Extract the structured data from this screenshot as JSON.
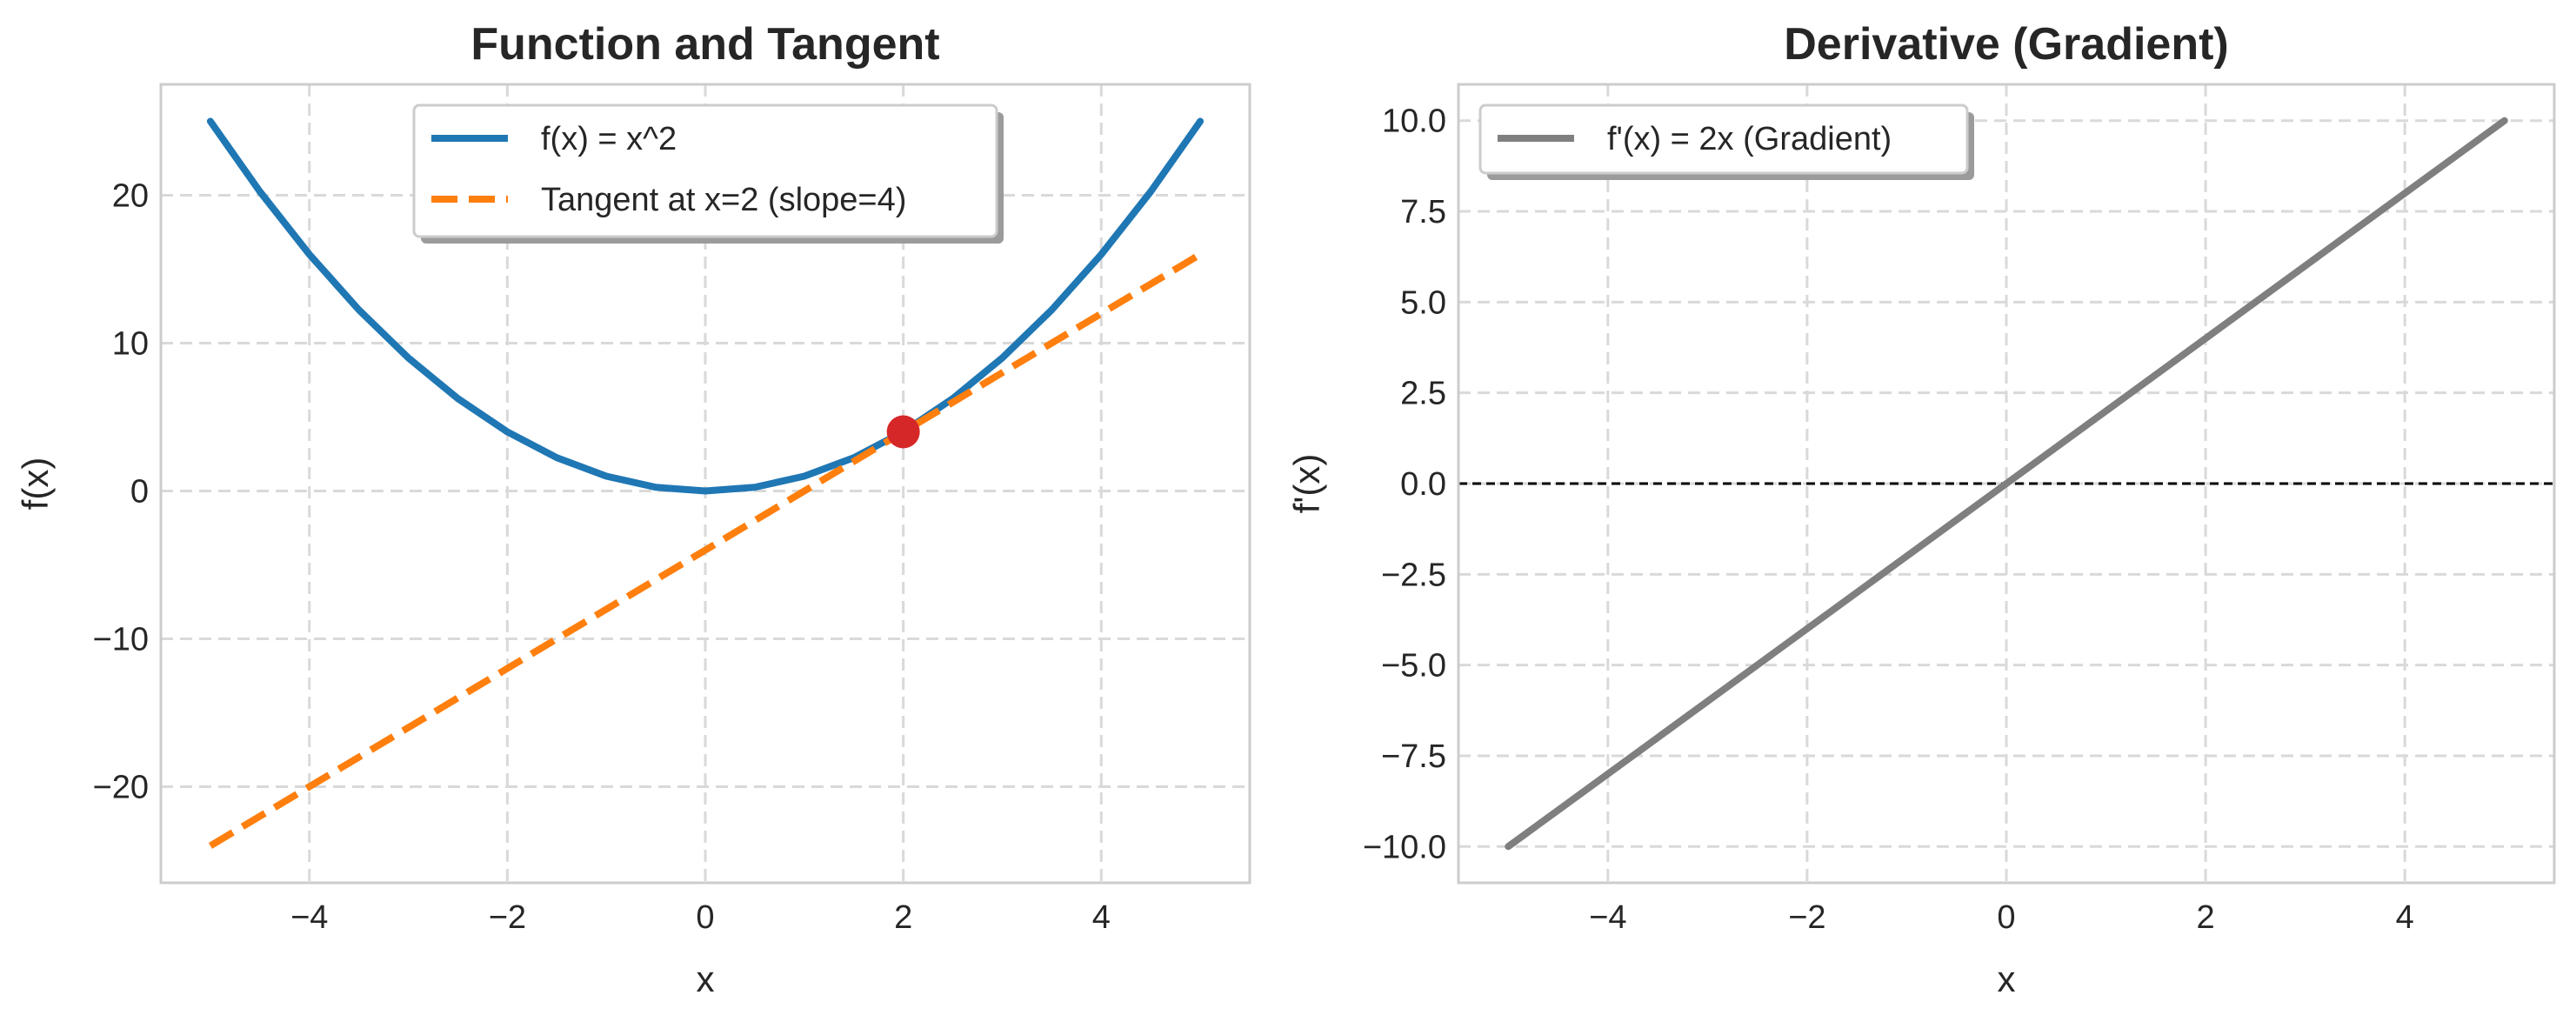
{
  "chart_data": [
    {
      "type": "line",
      "title": "Function and Tangent",
      "xlabel": "x",
      "ylabel": "f(x)",
      "xlim": [
        -5.5,
        5.5
      ],
      "ylim": [
        -26.5,
        27.5
      ],
      "xticks": [
        -4,
        -2,
        0,
        2,
        4
      ],
      "xtick_labels": [
        "−4",
        "−2",
        "0",
        "2",
        "4"
      ],
      "yticks": [
        -20,
        -10,
        0,
        10,
        20
      ],
      "ytick_labels": [
        "−20",
        "−10",
        "0",
        "10",
        "20"
      ],
      "grid": true,
      "legend_position": "top-center",
      "series": [
        {
          "name": "f(x) = x^2",
          "style": "solid",
          "color": "#1f77b4",
          "x": [
            -5,
            -4.5,
            -4,
            -3.5,
            -3,
            -2.5,
            -2,
            -1.5,
            -1,
            -0.5,
            0,
            0.5,
            1,
            1.5,
            2,
            2.5,
            3,
            3.5,
            4,
            4.5,
            5
          ],
          "y": [
            25,
            20.25,
            16,
            12.25,
            9,
            6.25,
            4,
            2.25,
            1,
            0.25,
            0,
            0.25,
            1,
            2.25,
            4,
            6.25,
            9,
            12.25,
            16,
            20.25,
            25
          ]
        },
        {
          "name": "Tangent at x=2 (slope=4)",
          "style": "dashed",
          "color": "#ff7f0e",
          "x": [
            -5,
            5
          ],
          "y": [
            -24,
            16
          ]
        }
      ],
      "points": [
        {
          "x": 2,
          "y": 4,
          "color": "#d62728"
        }
      ]
    },
    {
      "type": "line",
      "title": "Derivative (Gradient)",
      "xlabel": "x",
      "ylabel": "f'(x)",
      "xlim": [
        -5.5,
        5.5
      ],
      "ylim": [
        -11,
        11
      ],
      "xticks": [
        -4,
        -2,
        0,
        2,
        4
      ],
      "xtick_labels": [
        "−4",
        "−2",
        "0",
        "2",
        "4"
      ],
      "yticks": [
        -10,
        -7.5,
        -5,
        -2.5,
        0,
        2.5,
        5,
        7.5,
        10
      ],
      "ytick_labels": [
        "−10.0",
        "−7.5",
        "−5.0",
        "−2.5",
        "0.0",
        "2.5",
        "5.0",
        "7.5",
        "10.0"
      ],
      "grid": true,
      "legend_position": "top-left",
      "series": [
        {
          "name": "f'(x) = 2x (Gradient)",
          "style": "solid",
          "color": "#7f7f7f",
          "x": [
            -5,
            5
          ],
          "y": [
            -10,
            10
          ]
        }
      ],
      "hlines": [
        {
          "y": 0,
          "style": "dashed",
          "color": "#000000"
        }
      ]
    }
  ]
}
